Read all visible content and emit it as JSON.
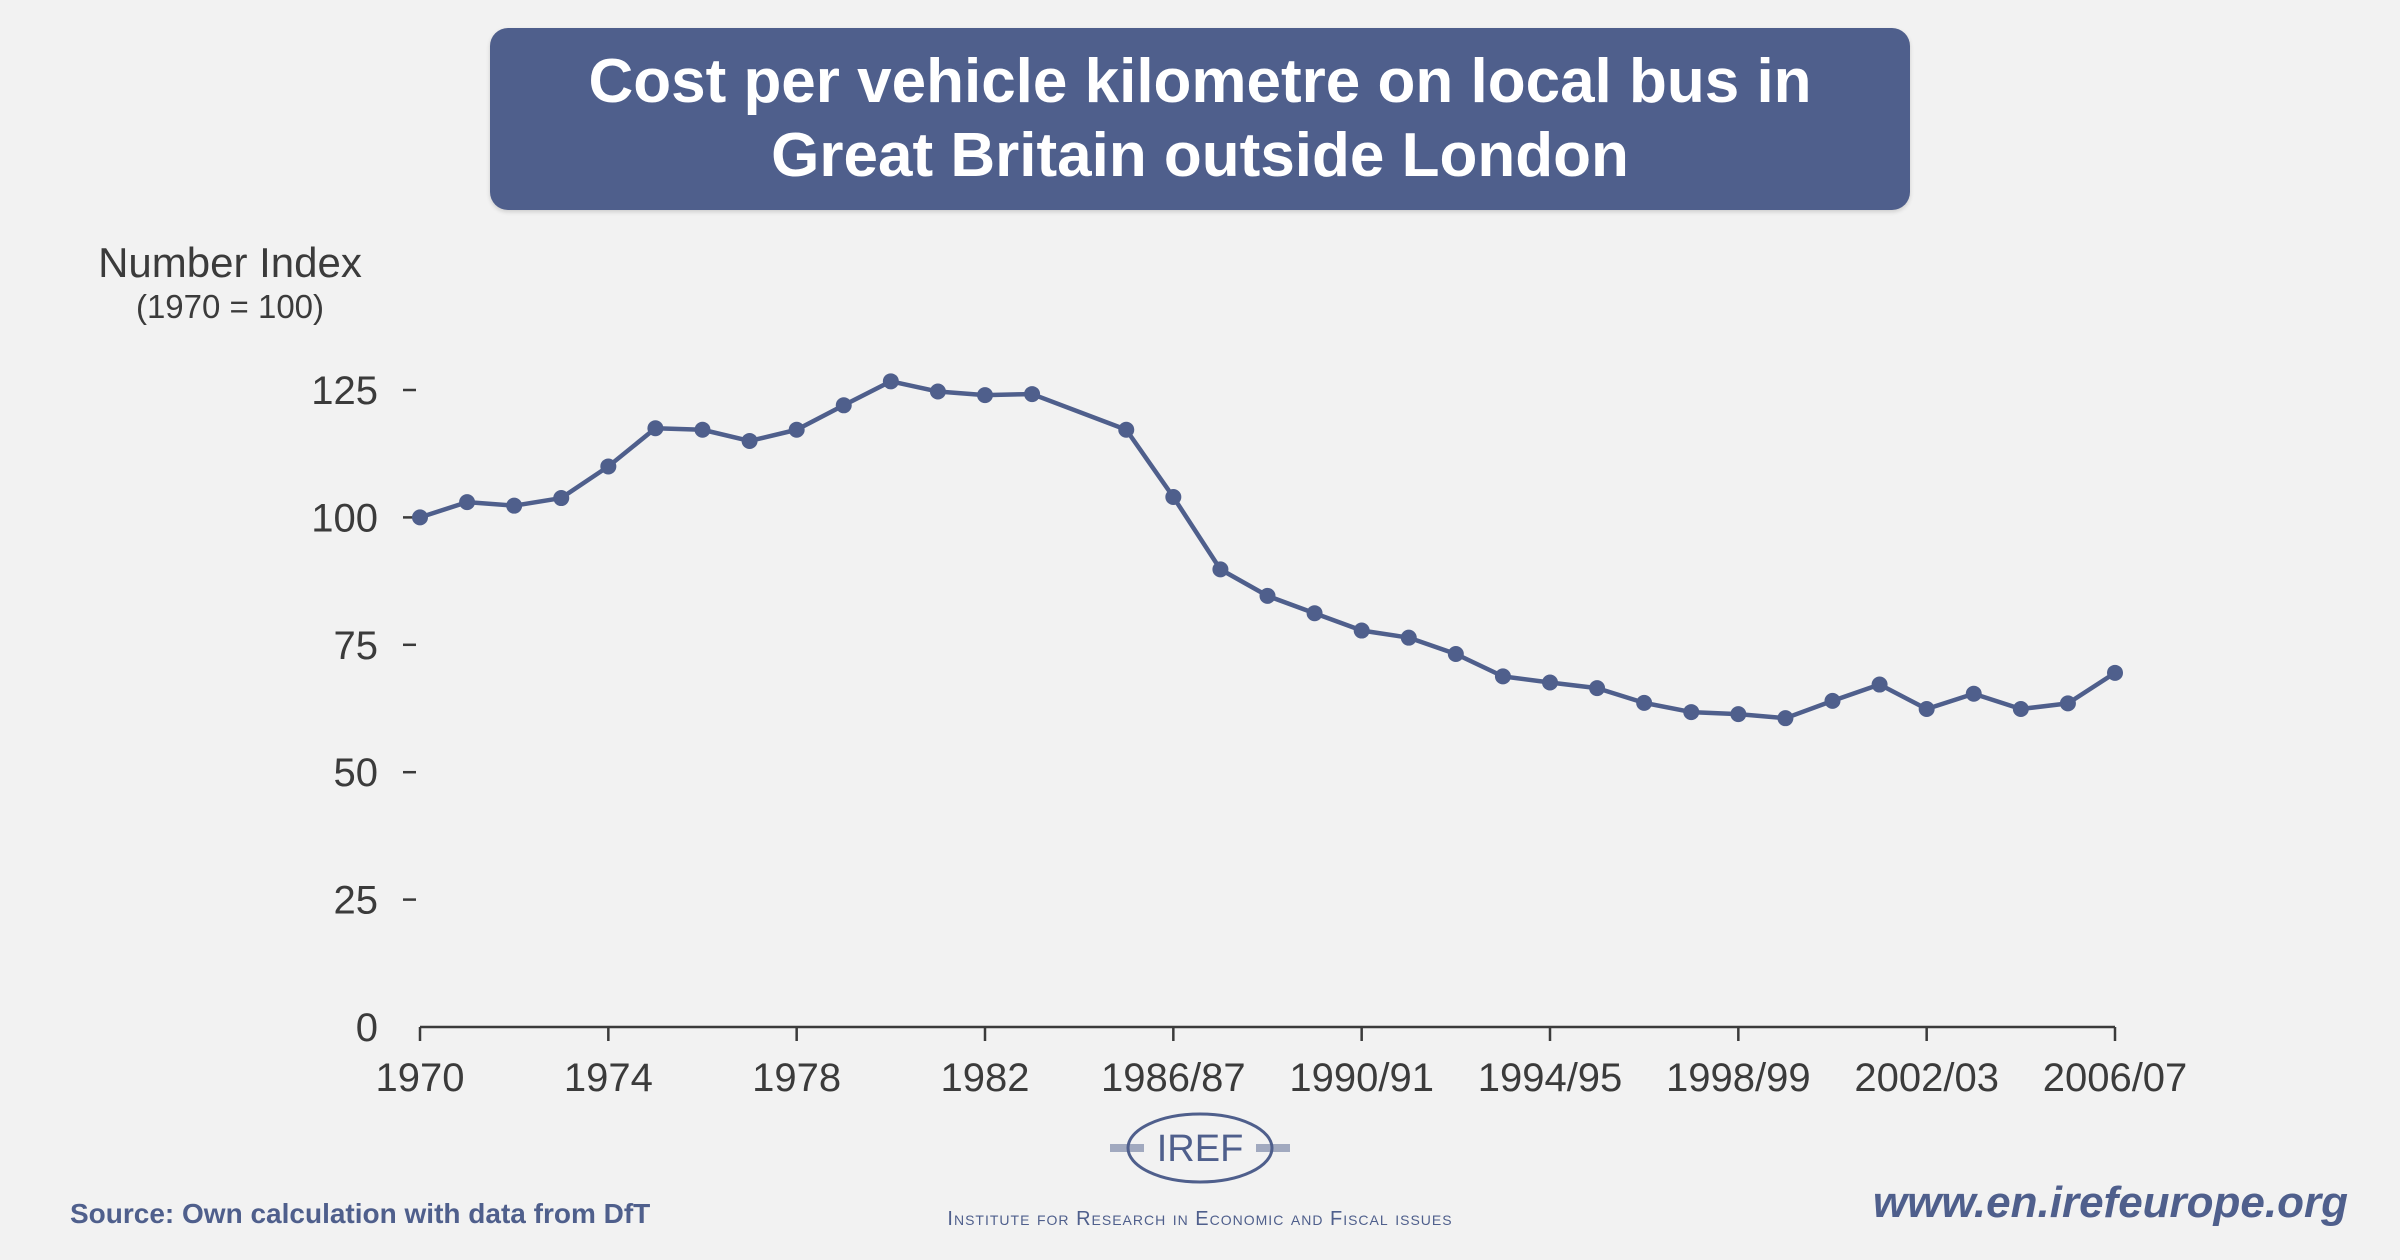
{
  "header": {
    "title_line1": "Cost per vehicle kilometre on local bus in",
    "title_line2": "Great Britain outside London"
  },
  "axis": {
    "ylabel_main": "Number Index",
    "ylabel_sub": "(1970 = 100)"
  },
  "footer": {
    "source": "Source: Own calculation with data from DfT",
    "logo_text": "IREF",
    "institute": "Institute for Research in Economic and Fiscal issues",
    "website": "www.en.irefeurope.org"
  },
  "colors": {
    "accent": "#4f5f8c",
    "axis": "#3b3b3b",
    "background": "#f2f2f2"
  },
  "chart_data": {
    "type": "line",
    "title": "Cost per vehicle kilometre on local bus in Great Britain outside London",
    "xlabel": "",
    "ylabel": "Number Index (1970 = 100)",
    "ylim": [
      0,
      125
    ],
    "yticks": [
      0,
      25,
      50,
      75,
      100,
      125
    ],
    "xtick_labels": [
      "1970",
      "1974",
      "1978",
      "1982",
      "1986/87",
      "1990/91",
      "1994/95",
      "1998/99",
      "2002/03",
      "2006/07"
    ],
    "xtick_positions": [
      0,
      4,
      8,
      12,
      16,
      20,
      24,
      28,
      32,
      36
    ],
    "xlim": [
      0,
      36
    ],
    "grid": false,
    "legend": "none",
    "series": [
      {
        "name": "Cost per vehicle kilometre index",
        "x": [
          0,
          1,
          2,
          3,
          4,
          5,
          6,
          7,
          8,
          9,
          10,
          11,
          12,
          13,
          15,
          16,
          17,
          18,
          19,
          20,
          21,
          22,
          23,
          24,
          25,
          26,
          27,
          28,
          29,
          30,
          31,
          32,
          33,
          34,
          35,
          36
        ],
        "values": [
          100,
          103,
          102.3,
          103.8,
          110,
          117.5,
          117.2,
          115,
          117.2,
          122,
          126.7,
          124.7,
          124,
          124.2,
          117.2,
          104,
          89.8,
          84.6,
          81.2,
          77.8,
          76.4,
          73.2,
          68.8,
          67.6,
          66.5,
          63.6,
          61.8,
          61.4,
          60.6,
          64,
          67.2,
          62.4,
          65.4,
          62.4,
          63.5,
          69.5
        ]
      }
    ]
  }
}
